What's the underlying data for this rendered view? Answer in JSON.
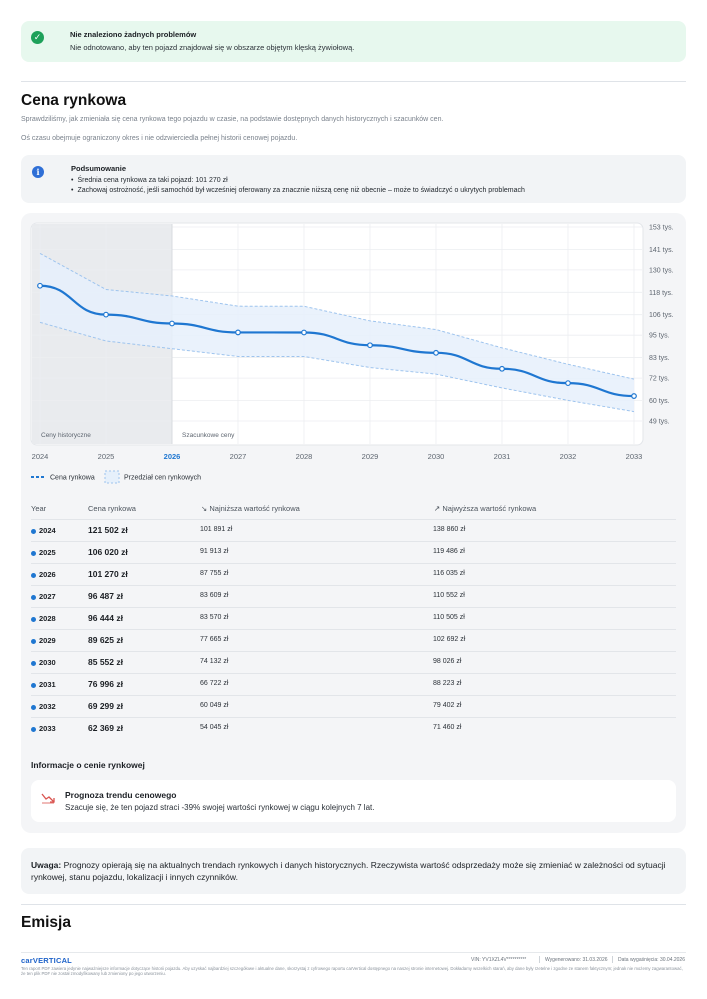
{
  "alert": {
    "title": "Nie znaleziono żadnych problemów",
    "text": "Nie odnotowano, aby ten pojazd znajdował się w obszarze objętym klęską żywiołową.",
    "icon": "check-circle-icon"
  },
  "market": {
    "title": "Cena rynkowa",
    "intro1": "Sprawdziliśmy, jak zmieniała się cena rynkowa tego pojazdu w czasie, na podstawie dostępnych danych historycznych i szacunków cen.",
    "intro2": "Oś czasu obejmuje ograniczony okres i nie odzwierciedla pełnej historii cenowej pojazdu.",
    "summary": {
      "title": "Podsumowanie",
      "bullets": [
        "Średnia cena rynkowa za taki pojazd: 101 270 zł",
        "Zachowaj ostrożność, jeśli samochód był wcześniej oferowany za znacznie niższą cenę niż obecnie – może to świadczyć o ukrytych problemach"
      ]
    },
    "chart_labels": {
      "historical": "Ceny historyczne",
      "estimated": "Szacunkowe ceny",
      "legend_price": "Cena rynkowa",
      "legend_range": "Przedział cen rynkowych"
    },
    "table": {
      "headers": {
        "year": "Year",
        "price": "Cena rynkowa",
        "low": "↘ Najniższa wartość rynkowa",
        "high": "↗ Najwyższa wartość rynkowa"
      },
      "rows": [
        {
          "year": "2024",
          "price": "121 502 zł",
          "low": "101 891 zł",
          "high": "138 860 zł"
        },
        {
          "year": "2025",
          "price": "106 020 zł",
          "low": "91 913 zł",
          "high": "119 486 zł"
        },
        {
          "year": "2026",
          "price": "101 270 zł",
          "low": "87 755 zł",
          "high": "116 035 zł"
        },
        {
          "year": "2027",
          "price": "96 487 zł",
          "low": "83 609 zł",
          "high": "110 552 zł"
        },
        {
          "year": "2028",
          "price": "96 444 zł",
          "low": "83 570 zł",
          "high": "110 505 zł"
        },
        {
          "year": "2029",
          "price": "89 625 zł",
          "low": "77 665 zł",
          "high": "102 692 zł"
        },
        {
          "year": "2030",
          "price": "85 552 zł",
          "low": "74 132 zł",
          "high": "98 026 zł"
        },
        {
          "year": "2031",
          "price": "76 996 zł",
          "low": "66 722 zł",
          "high": "88 223 zł"
        },
        {
          "year": "2032",
          "price": "69 299 zł",
          "low": "60 049 zł",
          "high": "79 402 zł"
        },
        {
          "year": "2033",
          "price": "62 369 zł",
          "low": "54 045 zł",
          "high": "71 460 zł"
        }
      ]
    },
    "info_title": "Informacje o cenie rynkowej",
    "trend": {
      "title": "Prognoza trendu cenowego",
      "text": "Szacuje się, że ten pojazd straci -39% swojej wartości rynkowej w ciągu kolejnych 7 lat.",
      "icon": "trend-down-icon"
    },
    "note_label": "Uwaga:",
    "note_text": "Prognozy opierają się na aktualnych trendach rynkowych i danych historycznych. Rzeczywista wartość odsprzedaży może się zmieniać w zależności od sytuacji rynkowej, stanu pojazdu, lokalizacji i innych czynników."
  },
  "emisja_title": "Emisja",
  "footer": {
    "logo": "carVERTICAL",
    "vin": "VIN: YV1XZL4V**********",
    "generated": "Wygenerowano: 31.03.2026",
    "expires": "Data wygaśnięcia: 30.04.2026",
    "disclaimer": "Ten raport PDF zawiera jedynie najważniejsze informacje dotyczące historii pojazdu. Aby uzyskać najbardziej szczegółowe i aktualne dane, skorzystaj z cyfrowego raportu carVertical dostępnego na naszej stronie internetowej. Dokładamy wszelkich starań, aby dane były rzetelne i zgodne ze stanem faktycznym; jednak nie możemy zagwarantować, że ten plik PDF nie został zmodyfikowany lub zmieniony po jego utworzeniu."
  },
  "chart_data": {
    "type": "line",
    "x": [
      2024,
      2025,
      2026,
      2027,
      2028,
      2029,
      2030,
      2031,
      2032,
      2033
    ],
    "series": [
      {
        "name": "Cena rynkowa",
        "values": [
          121502,
          106020,
          101270,
          96487,
          96444,
          89625,
          85552,
          76996,
          69299,
          62369
        ]
      },
      {
        "name": "Przedział cen rynkowych (min)",
        "values": [
          101891,
          91913,
          87755,
          83609,
          83570,
          77665,
          74132,
          66722,
          60049,
          54045
        ]
      },
      {
        "name": "Przedział cen rynkowych (max)",
        "values": [
          138860,
          119486,
          116035,
          110552,
          110505,
          102692,
          98026,
          88223,
          79402,
          71460
        ]
      }
    ],
    "y_ticks": [
      "153 tys.",
      "141 tys.",
      "130 tys.",
      "118 tys.",
      "106 tys.",
      "95 tys.",
      "83 tys.",
      "72 tys.",
      "60 tys.",
      "49 tys."
    ],
    "y_tick_values": [
      153,
      141,
      130,
      118,
      106,
      95,
      83,
      72,
      60,
      49
    ],
    "x_ticks": [
      "2024",
      "2025",
      "2026",
      "2027",
      "2028",
      "2029",
      "2030",
      "2031",
      "2032",
      "2033"
    ],
    "ylim": [
      49000,
      153000
    ],
    "highlight_x": 2026,
    "historical_until": 2026,
    "colors": {
      "line": "#1f77d1",
      "band": "#e6f0fb",
      "band_edge": "#9ec4ee",
      "historical_bg": "#e9ebee"
    },
    "grid": true,
    "legend": "bottom-left"
  }
}
